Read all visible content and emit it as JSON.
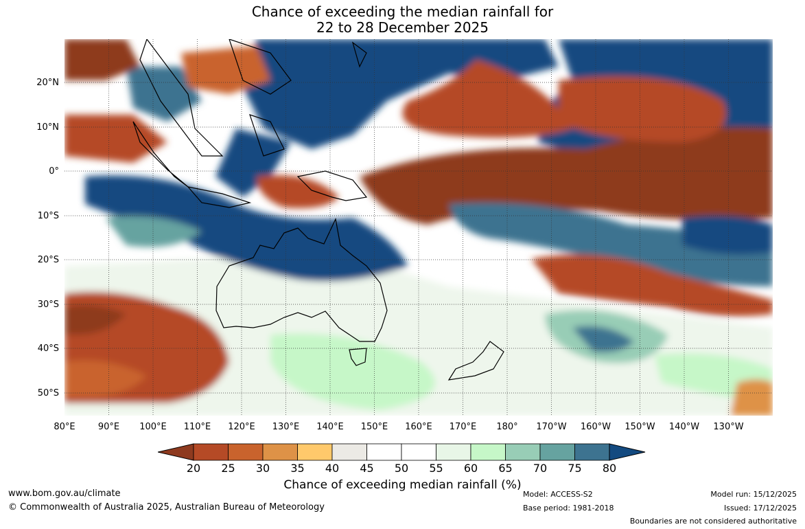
{
  "title": {
    "line1": "Chance of exceeding the median rainfall for",
    "line2": "22 to 28 December 2025"
  },
  "map": {
    "lat_labels": [
      "20°N",
      "10°N",
      "0°",
      "10°S",
      "20°S",
      "30°S",
      "40°S",
      "50°S"
    ],
    "lon_labels": [
      "80°E",
      "90°E",
      "100°E",
      "110°E",
      "120°E",
      "130°E",
      "140°E",
      "150°E",
      "160°E",
      "170°E",
      "180°",
      "170°W",
      "160°W",
      "150°W",
      "140°W",
      "130°W"
    ],
    "lon_range": [
      80,
      240
    ],
    "lat_range": [
      -55,
      30
    ]
  },
  "colorbar": {
    "label": "Chance of exceeding median rainfall (%)",
    "ticks": [
      "20",
      "25",
      "30",
      "35",
      "40",
      "45",
      "50",
      "55",
      "60",
      "65",
      "70",
      "75",
      "80"
    ],
    "colors": [
      "#8e3a1f",
      "#b54a26",
      "#c9632d",
      "#de9247",
      "#ffc96b",
      "#eceae5",
      "#ffffff",
      "#ffffff",
      "#e8f6e7",
      "#c6f7c8",
      "#98cdb6",
      "#66a3a0",
      "#3d7390",
      "#134a80"
    ]
  },
  "footer": {
    "website": "www.bom.gov.au/climate",
    "copyright": "© Commonwealth of Australia 2025, Australian Bureau of Meteorology",
    "model": "Model: ACCESS-S2",
    "base_period": "Base period: 1981-2018",
    "model_run": "Model run: 15/12/2025",
    "issued": "Issued: 17/12/2025",
    "disclaimer": "Boundaries are not considered authoritative"
  }
}
